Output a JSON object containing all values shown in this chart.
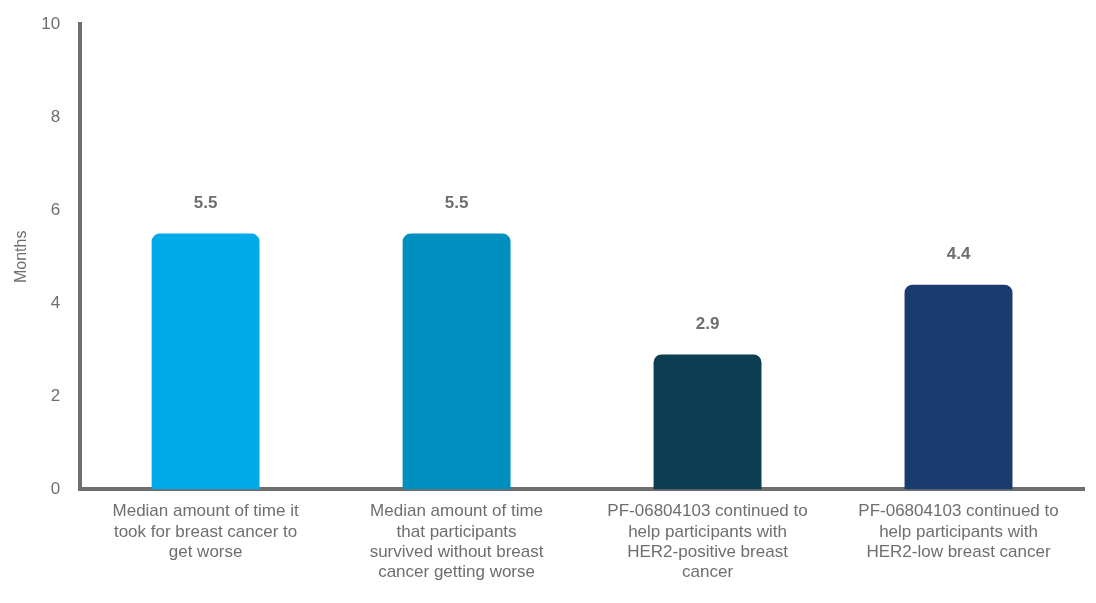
{
  "chart_data": {
    "type": "bar",
    "ylabel": "Months",
    "categories": [
      "Median amount of time it took for breast cancer to get worse",
      "Median amount of time that participants survived without breast cancer getting worse",
      "PF-06804103 continued to help participants with HER2-positive breast cancer",
      "PF-06804103 continued to help participants with HER2-low breast cancer"
    ],
    "values": [
      5.5,
      5.5,
      2.9,
      4.4
    ],
    "colors": [
      "#00a9e8",
      "#0090c0",
      "#0b3e50",
      "#1a3a70"
    ],
    "ylim": [
      0,
      10
    ],
    "yticks": [
      0,
      2,
      4,
      6,
      8,
      10
    ],
    "grid": false,
    "legend": false,
    "data_labels": true
  }
}
